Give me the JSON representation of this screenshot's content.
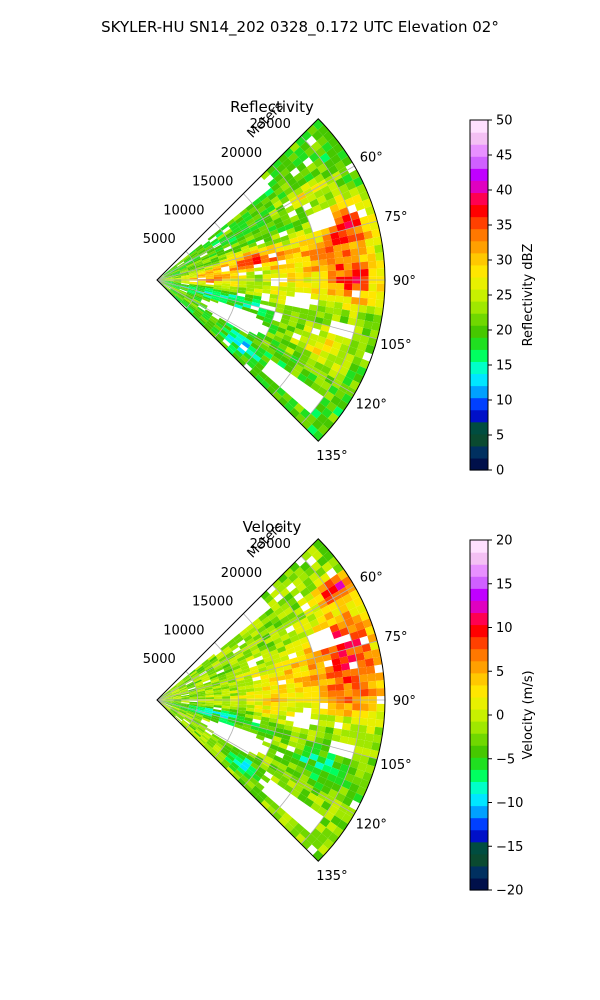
{
  "suptitle": "SKYLER-HU  SN14_202  0328_0.172 UTC Elevation 02°",
  "chart_data": [
    {
      "type": "heatmap",
      "title": "Reflectivity",
      "radial_label": "Meters",
      "range_ticks": [
        5000,
        10000,
        15000,
        20000,
        25000
      ],
      "range_tick_labels": [
        "5000",
        "10000",
        "15000",
        "20000",
        "25000"
      ],
      "rmax": 28000,
      "azimuth_range": [
        45,
        135
      ],
      "azimuth_ticks": [
        60,
        75,
        90,
        105,
        120,
        135
      ],
      "azimuth_tick_labels": [
        "60°",
        "75°",
        "90°",
        "105°",
        "120°",
        "135°"
      ],
      "grid": true,
      "colorbar": {
        "label": "Reflectivity dBZ",
        "range": [
          0,
          50
        ],
        "ticks": [
          0,
          5,
          10,
          15,
          20,
          25,
          30,
          35,
          40,
          45,
          50
        ],
        "tick_labels": [
          "0",
          "5",
          "10",
          "15",
          "20",
          "25",
          "30",
          "35",
          "40",
          "45",
          "50"
        ]
      },
      "field": {
        "background": 20,
        "cells": [
          {
            "az": 60,
            "r": 21000,
            "value": 28,
            "span_az": 3,
            "span_r": 3500
          },
          {
            "az": 73,
            "r": 24500,
            "value": 34,
            "span_az": 7,
            "span_r": 3500
          },
          {
            "az": 78,
            "r": 12000,
            "value": 33,
            "span_az": 6,
            "span_r": 4000
          },
          {
            "az": 82,
            "r": 20000,
            "value": 31,
            "span_az": 9,
            "span_r": 6000
          },
          {
            "az": 88,
            "r": 6500,
            "value": 32,
            "span_az": 10,
            "span_r": 4000
          },
          {
            "az": 91,
            "r": 24500,
            "value": 33,
            "span_az": 8,
            "span_r": 3500
          },
          {
            "az": 96,
            "r": 16000,
            "value": 27,
            "span_az": 7,
            "span_r": 5000
          },
          {
            "az": 103,
            "r": 8000,
            "value": 14,
            "span_az": 6,
            "span_r": 6000
          },
          {
            "az": 112,
            "r": 22000,
            "value": 28,
            "span_az": 6,
            "span_r": 4000
          },
          {
            "az": 127,
            "r": 13000,
            "value": 12,
            "span_az": 4,
            "span_r": 2500
          }
        ],
        "gaps": [
          {
            "az": 70,
            "r": 21500,
            "span_az": 6,
            "span_r": 3000
          },
          {
            "az": 98,
            "r": 18000,
            "span_az": 6,
            "span_r": 3500
          },
          {
            "az": 105,
            "r": 23500,
            "span_az": 5,
            "span_r": 3000
          },
          {
            "az": 115,
            "r": 10500,
            "span_az": 12,
            "span_r": 9000
          },
          {
            "az": 128,
            "r": 21000,
            "span_az": 7,
            "span_r": 9000
          }
        ]
      }
    },
    {
      "type": "heatmap",
      "title": "Velocity",
      "radial_label": "Meters",
      "range_ticks": [
        5000,
        10000,
        15000,
        20000,
        25000
      ],
      "range_tick_labels": [
        "5000",
        "10000",
        "15000",
        "20000",
        "25000"
      ],
      "rmax": 28000,
      "azimuth_range": [
        45,
        135
      ],
      "azimuth_ticks": [
        60,
        75,
        90,
        105,
        120,
        135
      ],
      "azimuth_tick_labels": [
        "60°",
        "75°",
        "90°",
        "105°",
        "120°",
        "135°"
      ],
      "grid": true,
      "colorbar": {
        "label": "Velocity (m/s)",
        "range": [
          -20,
          20
        ],
        "ticks": [
          -20,
          -15,
          -10,
          -5,
          0,
          5,
          10,
          15,
          20
        ],
        "tick_labels": [
          "−20",
          "−15",
          "−10",
          "−5",
          "0",
          "5",
          "10",
          "15",
          "20"
        ]
      },
      "field": {
        "background": -2,
        "cells": [
          {
            "az": 58,
            "r": 26000,
            "value": 11,
            "span_az": 3,
            "span_r": 2500
          },
          {
            "az": 72,
            "r": 24500,
            "value": 8,
            "span_az": 10,
            "span_r": 4000
          },
          {
            "az": 82,
            "r": 18000,
            "value": 4,
            "span_az": 12,
            "span_r": 7000
          },
          {
            "az": 88,
            "r": 25000,
            "value": 5,
            "span_az": 8,
            "span_r": 3500
          },
          {
            "az": 95,
            "r": 13000,
            "value": 1,
            "span_az": 8,
            "span_r": 5000
          },
          {
            "az": 103,
            "r": 8000,
            "value": -8,
            "span_az": 6,
            "span_r": 6000
          },
          {
            "az": 112,
            "r": 22000,
            "value": -7,
            "span_az": 6,
            "span_r": 4000
          },
          {
            "az": 127,
            "r": 13000,
            "value": -9,
            "span_az": 4,
            "span_r": 2500
          }
        ],
        "gaps": [
          {
            "az": 70,
            "r": 21500,
            "span_az": 6,
            "span_r": 3000
          },
          {
            "az": 98,
            "r": 18000,
            "span_az": 6,
            "span_r": 3500
          },
          {
            "az": 105,
            "r": 23500,
            "span_az": 5,
            "span_r": 3000
          },
          {
            "az": 115,
            "r": 10500,
            "span_az": 12,
            "span_r": 9000
          },
          {
            "az": 128,
            "r": 21000,
            "span_az": 7,
            "span_r": 9000
          }
        ]
      }
    }
  ],
  "colormap": [
    "#00104a",
    "#003060",
    "#0a4a30",
    "#004d40",
    "#0010c8",
    "#0040ff",
    "#00a0ff",
    "#00e6ff",
    "#00ffc8",
    "#00ff60",
    "#20e020",
    "#46c800",
    "#70d800",
    "#a0e800",
    "#c8f000",
    "#e8f000",
    "#ffe600",
    "#ffc800",
    "#ffa000",
    "#ff7800",
    "#ff4000",
    "#ff0000",
    "#ff0050",
    "#e000c0",
    "#c000ff",
    "#d060ff",
    "#e890ff",
    "#f4c0f4",
    "#ffe0ff"
  ]
}
